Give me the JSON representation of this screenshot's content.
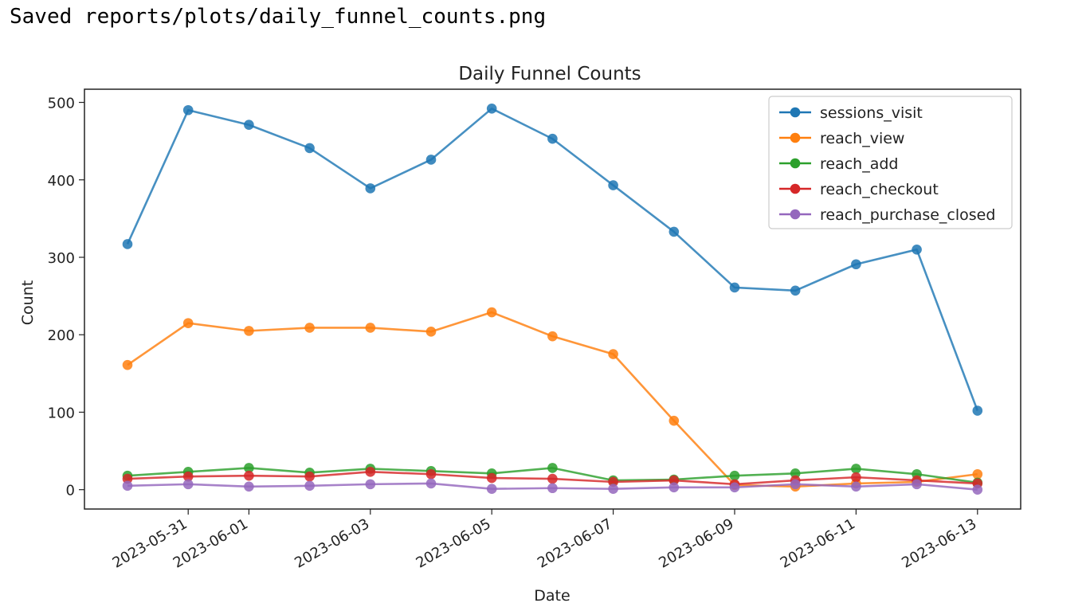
{
  "console": {
    "output": "Saved reports/plots/daily_funnel_counts.png"
  },
  "chart_data": {
    "type": "line",
    "title": "Daily Funnel Counts",
    "xlabel": "Date",
    "ylabel": "Count",
    "x": [
      "2023-05-30",
      "2023-05-31",
      "2023-06-01",
      "2023-06-02",
      "2023-06-03",
      "2023-06-04",
      "2023-06-05",
      "2023-06-06",
      "2023-06-07",
      "2023-06-08",
      "2023-06-09",
      "2023-06-10",
      "2023-06-11",
      "2023-06-12",
      "2023-06-13"
    ],
    "xticks": [
      "2023-05-31",
      "2023-06-01",
      "2023-06-03",
      "2023-06-05",
      "2023-06-07",
      "2023-06-09",
      "2023-06-11",
      "2023-06-13"
    ],
    "yticks": [
      0,
      100,
      200,
      300,
      400,
      500
    ],
    "ylim": [
      -25,
      517
    ],
    "grid": false,
    "legend_position": "top-right",
    "series": [
      {
        "name": "sessions_visit",
        "color": "#1f77b4",
        "values": [
          317,
          490,
          471,
          441,
          389,
          426,
          492,
          453,
          393,
          333,
          261,
          257,
          291,
          310,
          102
        ]
      },
      {
        "name": "reach_view",
        "color": "#ff7f0e",
        "values": [
          161,
          215,
          205,
          209,
          209,
          204,
          229,
          198,
          175,
          89,
          6,
          4,
          8,
          10,
          20
        ]
      },
      {
        "name": "reach_add",
        "color": "#2ca02c",
        "values": [
          18,
          23,
          28,
          22,
          27,
          24,
          21,
          28,
          12,
          13,
          18,
          21,
          27,
          20,
          9
        ]
      },
      {
        "name": "reach_checkout",
        "color": "#d62728",
        "values": [
          14,
          17,
          18,
          17,
          23,
          20,
          15,
          14,
          10,
          12,
          7,
          12,
          16,
          12,
          8
        ]
      },
      {
        "name": "reach_purchase_closed",
        "color": "#9467bd",
        "values": [
          5,
          7,
          4,
          5,
          7,
          8,
          1,
          2,
          1,
          3,
          3,
          7,
          4,
          7,
          0
        ]
      }
    ]
  }
}
